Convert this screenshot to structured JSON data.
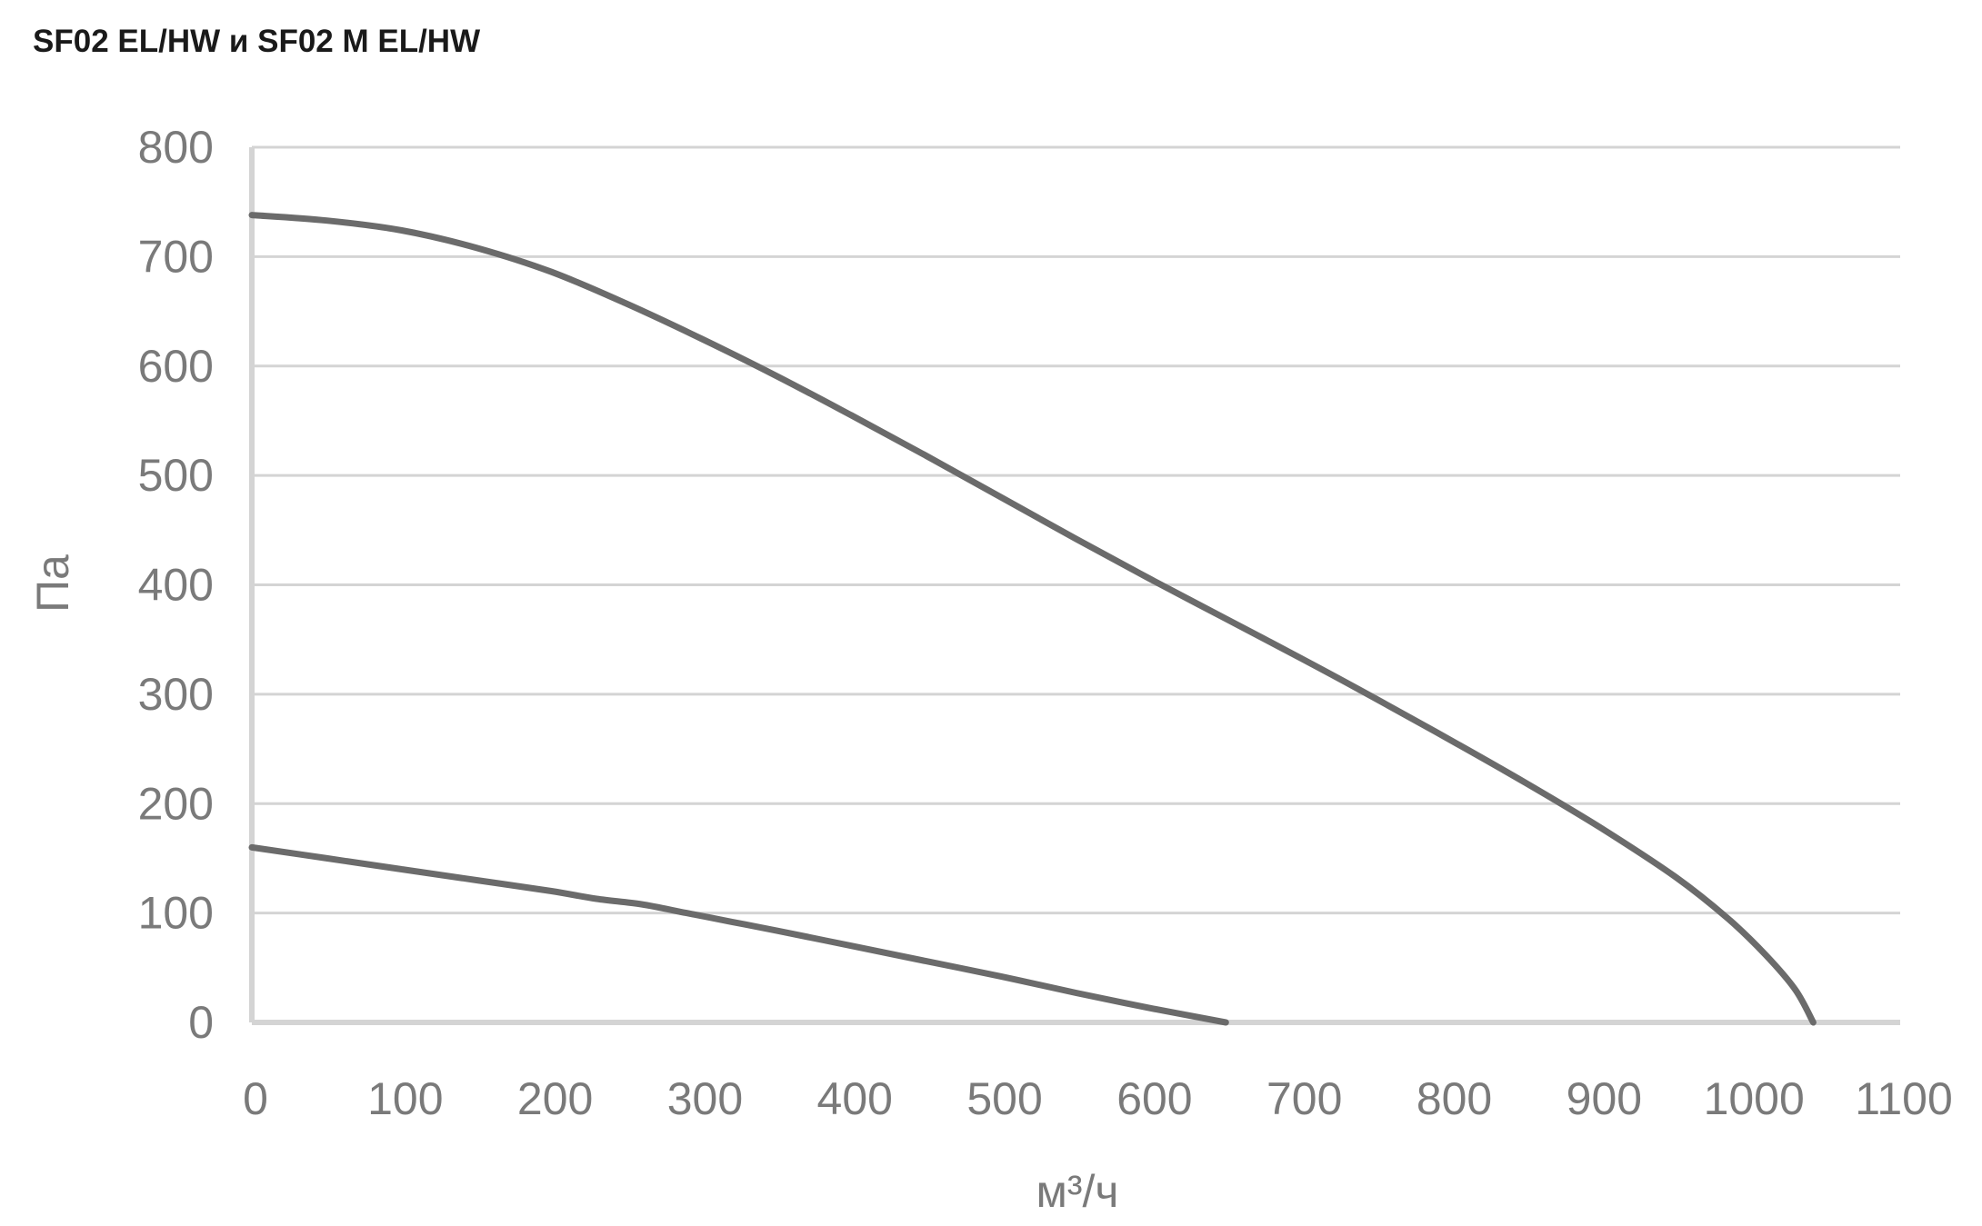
{
  "chart_data": {
    "type": "line",
    "title": "SF02 EL/HW и SF02 M EL/HW",
    "xlabel": "м³/ч",
    "ylabel": "Па",
    "xlim": [
      0,
      1100
    ],
    "ylim": [
      0,
      800
    ],
    "xticks": [
      0,
      100,
      200,
      300,
      400,
      500,
      600,
      700,
      800,
      900,
      1000,
      1100
    ],
    "yticks": [
      0,
      100,
      200,
      300,
      400,
      500,
      600,
      700,
      800
    ],
    "grid": true,
    "line_color": "#6b6b6b",
    "series": [
      {
        "points": [
          [
            0,
            738
          ],
          [
            50,
            733
          ],
          [
            100,
            724
          ],
          [
            150,
            708
          ],
          [
            200,
            686
          ],
          [
            250,
            657
          ],
          [
            300,
            625
          ],
          [
            350,
            591
          ],
          [
            400,
            555
          ],
          [
            450,
            518
          ],
          [
            500,
            480
          ],
          [
            550,
            442
          ],
          [
            600,
            405
          ],
          [
            650,
            369
          ],
          [
            700,
            333
          ],
          [
            750,
            296
          ],
          [
            800,
            258
          ],
          [
            850,
            219
          ],
          [
            900,
            178
          ],
          [
            950,
            133
          ],
          [
            985,
            95
          ],
          [
            1010,
            62
          ],
          [
            1030,
            30
          ],
          [
            1042,
            0
          ]
        ]
      },
      {
        "points": [
          [
            0,
            160
          ],
          [
            50,
            150
          ],
          [
            100,
            140
          ],
          [
            150,
            130
          ],
          [
            200,
            120
          ],
          [
            230,
            113
          ],
          [
            260,
            108
          ],
          [
            290,
            100
          ],
          [
            320,
            92
          ],
          [
            350,
            84
          ],
          [
            400,
            70
          ],
          [
            450,
            56
          ],
          [
            500,
            42
          ],
          [
            550,
            27
          ],
          [
            600,
            13
          ],
          [
            650,
            0
          ]
        ]
      }
    ]
  }
}
